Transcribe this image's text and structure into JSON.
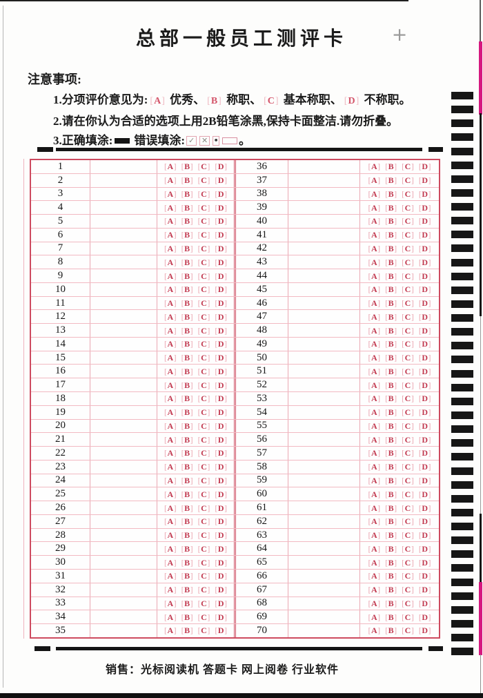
{
  "header": {
    "title": "总部一般员工测评卡",
    "registration_mark": "+"
  },
  "notice": {
    "heading": "注意事项:",
    "item1": {
      "prefix": "1.分项评价意见为:",
      "options": [
        {
          "letter": "A",
          "label": "优秀"
        },
        {
          "letter": "B",
          "label": "称职"
        },
        {
          "letter": "C",
          "label": "基本称职"
        },
        {
          "letter": "D",
          "label": "不称职"
        }
      ],
      "separator": "、",
      "suffix": "。"
    },
    "item2": "2.请在你认为合适的选项上用2B铅笔涂黑,保持卡面整洁.请勿折叠。",
    "item3": {
      "prefix": "3.正确填涂:",
      "correct_mark": "filled-bar",
      "middle": "错误填涂:",
      "wrong_marks": [
        "check",
        "cross",
        "dot",
        "hollow-bar"
      ],
      "suffix": "。"
    }
  },
  "grid": {
    "options": [
      "A",
      "B",
      "C",
      "D"
    ],
    "left_numbers": [
      1,
      2,
      3,
      4,
      5,
      6,
      7,
      8,
      9,
      10,
      11,
      12,
      13,
      14,
      15,
      16,
      17,
      18,
      19,
      20,
      21,
      22,
      23,
      24,
      25,
      26,
      27,
      28,
      29,
      30,
      31,
      32,
      33,
      34,
      35
    ],
    "right_numbers": [
      36,
      37,
      38,
      39,
      40,
      41,
      42,
      43,
      44,
      45,
      46,
      47,
      48,
      49,
      50,
      51,
      52,
      53,
      54,
      55,
      56,
      57,
      58,
      59,
      60,
      61,
      62,
      63,
      64,
      65,
      66,
      67,
      68,
      69,
      70
    ]
  },
  "timing_marks": {
    "count": 41
  },
  "footer": {
    "label": "销售：",
    "items": [
      "光标阅读机",
      "答题卡",
      "网上阅卷",
      "行业软件"
    ]
  },
  "colors": {
    "grid_border": "#cd4a5f",
    "grid_line": "#f2b9c2",
    "bubble_letter": "#c23a50",
    "bubble_bracket": "#eca6b1",
    "timing_mark": "#161616",
    "edge_magenta": "#d6187f"
  }
}
